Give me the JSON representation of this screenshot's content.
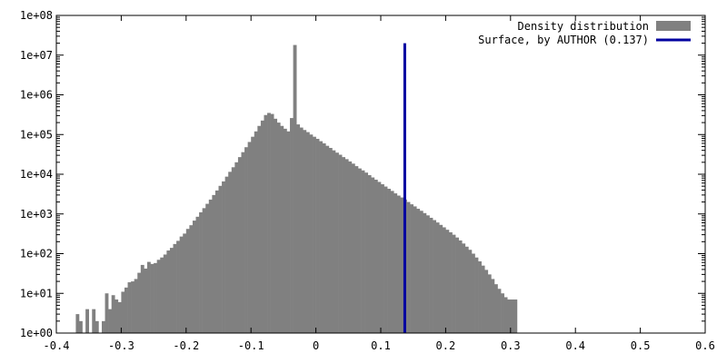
{
  "chart_data": {
    "type": "bar",
    "title": "",
    "xlabel": "",
    "ylabel": "",
    "xlim": [
      -0.4,
      0.6
    ],
    "ylim": [
      1,
      100000000
    ],
    "y_scale": "log",
    "grid": false,
    "legend_placement": "top-right",
    "x_ticks": [
      "-0.4",
      "-0.3",
      "-0.2",
      "-0.1",
      "0",
      "0.1",
      "0.2",
      "0.3",
      "0.4",
      "0.5",
      "0.6"
    ],
    "y_ticks": [
      "1e+00",
      "1e+01",
      "1e+02",
      "1e+03",
      "1e+04",
      "1e+05",
      "1e+06",
      "1e+07",
      "1e+08"
    ],
    "bin_width": 0.005,
    "series": [
      {
        "name": "Density distribution",
        "color": "#808080",
        "bins": [
          [
            -0.37,
            3
          ],
          [
            -0.365,
            2
          ],
          [
            -0.36,
            1
          ],
          [
            -0.355,
            4
          ],
          [
            -0.35,
            1
          ],
          [
            -0.345,
            4
          ],
          [
            -0.34,
            2
          ],
          [
            -0.335,
            1
          ],
          [
            -0.33,
            2
          ],
          [
            -0.325,
            10
          ],
          [
            -0.32,
            4
          ],
          [
            -0.315,
            9
          ],
          [
            -0.31,
            7
          ],
          [
            -0.305,
            6
          ],
          [
            -0.3,
            11
          ],
          [
            -0.295,
            14
          ],
          [
            -0.29,
            19
          ],
          [
            -0.285,
            20
          ],
          [
            -0.28,
            23
          ],
          [
            -0.275,
            33
          ],
          [
            -0.27,
            52
          ],
          [
            -0.265,
            42
          ],
          [
            -0.26,
            62
          ],
          [
            -0.255,
            55
          ],
          [
            -0.25,
            58
          ],
          [
            -0.245,
            70
          ],
          [
            -0.24,
            80
          ],
          [
            -0.235,
            95
          ],
          [
            -0.23,
            120
          ],
          [
            -0.225,
            140
          ],
          [
            -0.22,
            175
          ],
          [
            -0.215,
            210
          ],
          [
            -0.21,
            270
          ],
          [
            -0.205,
            320
          ],
          [
            -0.2,
            420
          ],
          [
            -0.195,
            520
          ],
          [
            -0.19,
            680
          ],
          [
            -0.185,
            850
          ],
          [
            -0.18,
            1100
          ],
          [
            -0.175,
            1400
          ],
          [
            -0.17,
            1800
          ],
          [
            -0.165,
            2300
          ],
          [
            -0.16,
            3000
          ],
          [
            -0.155,
            3900
          ],
          [
            -0.15,
            5100
          ],
          [
            -0.145,
            6600
          ],
          [
            -0.14,
            8700
          ],
          [
            -0.135,
            11500
          ],
          [
            -0.13,
            15000
          ],
          [
            -0.125,
            20000
          ],
          [
            -0.12,
            27000
          ],
          [
            -0.115,
            36000
          ],
          [
            -0.11,
            48000
          ],
          [
            -0.105,
            65000
          ],
          [
            -0.1,
            88000
          ],
          [
            -0.095,
            120000
          ],
          [
            -0.09,
            165000
          ],
          [
            -0.085,
            225000
          ],
          [
            -0.08,
            310000
          ],
          [
            -0.075,
            350000
          ],
          [
            -0.07,
            330000
          ],
          [
            -0.065,
            250000
          ],
          [
            -0.06,
            200000
          ],
          [
            -0.055,
            165000
          ],
          [
            -0.05,
            140000
          ],
          [
            -0.045,
            120000
          ],
          [
            -0.04,
            260000
          ],
          [
            -0.035,
            18000000
          ],
          [
            -0.03,
            180000
          ],
          [
            -0.025,
            150000
          ],
          [
            -0.02,
            130000
          ],
          [
            -0.015,
            115000
          ],
          [
            -0.01,
            100000
          ],
          [
            -0.005,
            88000
          ],
          [
            0.0,
            78000
          ],
          [
            0.005,
            68000
          ],
          [
            0.01,
            60000
          ],
          [
            0.015,
            52000
          ],
          [
            0.02,
            46000
          ],
          [
            0.025,
            40000
          ],
          [
            0.03,
            35000
          ],
          [
            0.035,
            31000
          ],
          [
            0.04,
            27000
          ],
          [
            0.045,
            24000
          ],
          [
            0.05,
            21000
          ],
          [
            0.055,
            18500
          ],
          [
            0.06,
            16000
          ],
          [
            0.065,
            14000
          ],
          [
            0.07,
            12500
          ],
          [
            0.075,
            11000
          ],
          [
            0.08,
            9500
          ],
          [
            0.085,
            8300
          ],
          [
            0.09,
            7300
          ],
          [
            0.095,
            6400
          ],
          [
            0.1,
            5600
          ],
          [
            0.105,
            4900
          ],
          [
            0.11,
            4300
          ],
          [
            0.115,
            3800
          ],
          [
            0.12,
            3300
          ],
          [
            0.125,
            2900
          ],
          [
            0.13,
            2600
          ],
          [
            0.135,
            2300
          ],
          [
            0.14,
            2000
          ],
          [
            0.145,
            1750
          ],
          [
            0.15,
            1550
          ],
          [
            0.155,
            1350
          ],
          [
            0.16,
            1200
          ],
          [
            0.165,
            1050
          ],
          [
            0.17,
            920
          ],
          [
            0.175,
            800
          ],
          [
            0.18,
            700
          ],
          [
            0.185,
            610
          ],
          [
            0.19,
            530
          ],
          [
            0.195,
            460
          ],
          [
            0.2,
            400
          ],
          [
            0.205,
            345
          ],
          [
            0.21,
            300
          ],
          [
            0.215,
            255
          ],
          [
            0.22,
            215
          ],
          [
            0.225,
            180
          ],
          [
            0.23,
            150
          ],
          [
            0.235,
            125
          ],
          [
            0.24,
            100
          ],
          [
            0.245,
            80
          ],
          [
            0.25,
            64
          ],
          [
            0.255,
            50
          ],
          [
            0.26,
            39
          ],
          [
            0.265,
            30
          ],
          [
            0.27,
            23
          ],
          [
            0.275,
            17
          ],
          [
            0.28,
            13
          ],
          [
            0.285,
            10
          ],
          [
            0.29,
            8
          ],
          [
            0.295,
            7
          ],
          [
            0.3,
            7
          ],
          [
            0.305,
            7
          ]
        ]
      },
      {
        "name": "Surface, by AUTHOR (0.137)",
        "color": "#0000a0",
        "type": "vertical-line",
        "x": 0.137
      }
    ]
  }
}
